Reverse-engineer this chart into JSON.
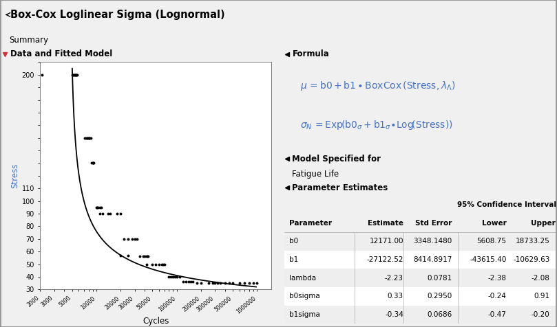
{
  "title": "Box-Cox Loglinear Sigma (Lognormal)",
  "tab_label": "Summary",
  "plot_section": "Data and Fitted Model",
  "formula_section": "Formula",
  "model_section": "Model Specified for",
  "model_value": "Fatigue Life",
  "param_section": "Parameter Estimates",
  "xlabel": "Cycles",
  "ylabel": "Stress",
  "stress_cycles": [
    [
      200,
      [
        2100,
        5000,
        5100,
        5200,
        5300,
        5400,
        5500,
        5600,
        5700,
        5800
      ]
    ],
    [
      150,
      [
        7200,
        7500,
        7700,
        7800,
        8000,
        8100,
        8200,
        8500
      ]
    ],
    [
      130,
      [
        8800,
        9000,
        9100,
        9300
      ]
    ],
    [
      95,
      [
        10000,
        10200,
        10500,
        11000,
        11500
      ]
    ],
    [
      90,
      [
        11000,
        12000,
        14000,
        15000,
        18000,
        20000
      ]
    ],
    [
      70,
      [
        22000,
        25000,
        28000,
        30000,
        32000
      ]
    ],
    [
      57,
      [
        20000,
        25000
      ]
    ],
    [
      56,
      [
        35000,
        38000,
        40000,
        42000,
        43000,
        44000
      ]
    ],
    [
      50,
      [
        42000,
        50000,
        55000,
        60000,
        65000,
        68000,
        70000
      ]
    ],
    [
      40,
      [
        80000,
        85000,
        90000,
        95000,
        100000,
        110000
      ]
    ],
    [
      36,
      [
        120000,
        130000,
        140000,
        150000,
        160000
      ]
    ],
    [
      35,
      [
        180000,
        200000,
        250000,
        280000,
        300000,
        320000,
        350000,
        400000,
        450000,
        500000,
        600000,
        700000,
        800000,
        900000,
        1000000
      ]
    ]
  ],
  "scatter_color": "#000000",
  "scatter_size": 8,
  "curve_color": "#000000",
  "xlim": [
    2000,
    1500000
  ],
  "ylim": [
    30,
    210
  ],
  "ylabel_color": "#4472C4",
  "bg_color": "#f0f0f0",
  "plot_bg": "#ffffff",
  "parameters": [
    "b0",
    "b1",
    "lambda",
    "b0sigma",
    "b1sigma"
  ],
  "estimates": [
    "12171.00",
    "-27122.52",
    "-2.23",
    "0.33",
    "-0.34"
  ],
  "std_errors": [
    "3348.1480",
    "8414.8917",
    "0.0781",
    "0.2950",
    "0.0686"
  ],
  "ci_lower": [
    "5608.75",
    "-43615.40",
    "-2.38",
    "-0.24",
    "-0.47"
  ],
  "ci_upper": [
    "18733.25",
    "-10629.63",
    "-2.08",
    "0.91",
    "-0.20"
  ]
}
